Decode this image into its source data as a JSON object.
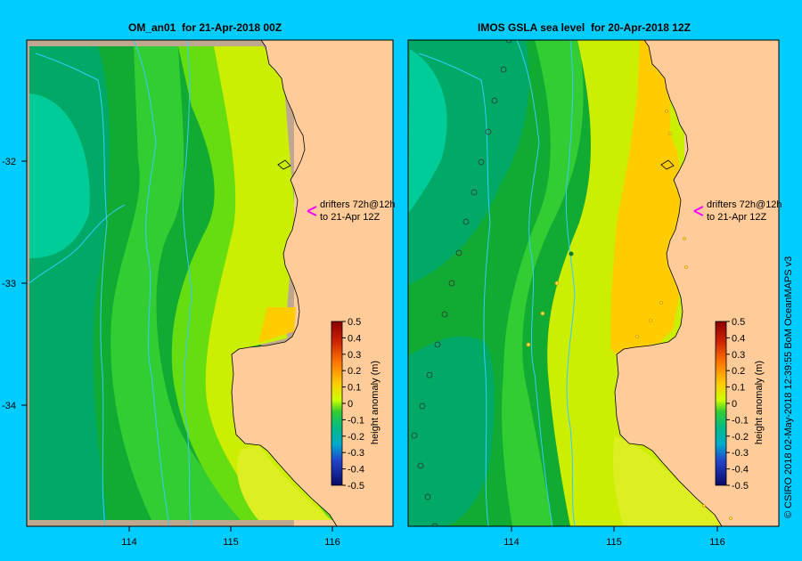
{
  "left_map": {
    "title": "OM_an01  for 21-Apr-2018 00Z",
    "drifters_line1": "drifters 72h@12h",
    "drifters_line2": "to 21-Apr 12Z"
  },
  "right_map": {
    "title": "IMOS GSLA sea level  for 20-Apr-2018 12Z",
    "drifters_line1": "drifters 72h@12h",
    "drifters_line2": "to 21-Apr 12Z"
  },
  "axes": {
    "lat_ticks": [
      "-32",
      "-33",
      "-34"
    ],
    "lon_ticks": [
      "114",
      "115",
      "116"
    ]
  },
  "colorbar": {
    "label": "height anomaly (m)",
    "ticks": [
      "0.5",
      "0.4",
      "0.3",
      "0.2",
      "0.1",
      "0",
      "-0.1",
      "-0.2",
      "-0.3",
      "-0.4",
      "-0.5"
    ]
  },
  "credit": "© CSIRO 2018    02-May-2018 12:39:55 BoM OceanMAPS v3",
  "colors": {
    "background": "#00ccff",
    "land": "#ffcc99",
    "coast": "#c0a890",
    "contour": "#33ccff",
    "drifter_arrow": "#ff00ff"
  }
}
